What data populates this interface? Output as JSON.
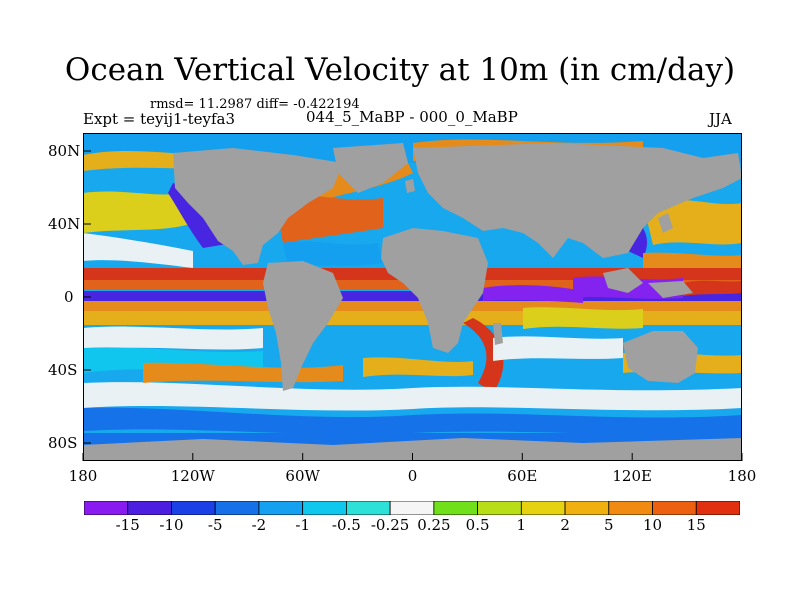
{
  "figure": {
    "title": "Ocean Vertical Velocity at 10m (in cm/day)",
    "stats": "rmsd= 11.2987 diff= -0.422194",
    "expt": "Expt = teyij1-teyfa3",
    "period": "044_5_MaBP - 000_0_MaBP",
    "season": "JJA"
  },
  "map": {
    "x_ticks": [
      "180",
      "120W",
      "60W",
      "0",
      "60E",
      "120E",
      "180"
    ],
    "y_ticks": [
      "80N",
      "40N",
      "0",
      "40S",
      "80S"
    ],
    "land_color": "#a0a0a0"
  },
  "colorbar": {
    "labels": [
      "-15",
      "-10",
      "-5",
      "-2",
      "-1",
      "-0.5",
      "-0.25",
      "0.25",
      "0.5",
      "1",
      "2",
      "5",
      "10",
      "15"
    ],
    "colors": [
      "#8a1bf0",
      "#4b1ee0",
      "#1a40e6",
      "#1670e8",
      "#15a0f0",
      "#10c8ee",
      "#2de0d8",
      "#f5f5f5",
      "#6fe01a",
      "#b8de18",
      "#e6d210",
      "#f0b010",
      "#f08a10",
      "#ec6010",
      "#e03010"
    ]
  },
  "chart_data": {
    "type": "heatmap",
    "title": "Ocean Vertical Velocity at 10m (in cm/day)",
    "variable": "ocean vertical velocity at 10m",
    "units": "cm/day",
    "stats": {
      "rmsd": 11.2987,
      "diff": -0.422194
    },
    "experiment": "teyij1-teyfa3",
    "period": "044_5_MaBP - 000_0_MaBP",
    "season": "JJA",
    "x_axis": {
      "range": [
        -180,
        180
      ],
      "ticks": [
        -180,
        -120,
        -60,
        0,
        60,
        120,
        180
      ],
      "tick_labels": [
        "180",
        "120W",
        "60W",
        "0",
        "60E",
        "120E",
        "180"
      ]
    },
    "y_axis": {
      "range": [
        -90,
        90
      ],
      "ticks": [
        80,
        40,
        0,
        -40,
        -80
      ],
      "tick_labels": [
        "80N",
        "40N",
        "0",
        "40S",
        "80S"
      ]
    },
    "levels": [
      -15,
      -10,
      -5,
      -2,
      -1,
      -0.5,
      -0.25,
      0.25,
      0.5,
      1,
      2,
      5,
      10,
      15
    ]
  }
}
